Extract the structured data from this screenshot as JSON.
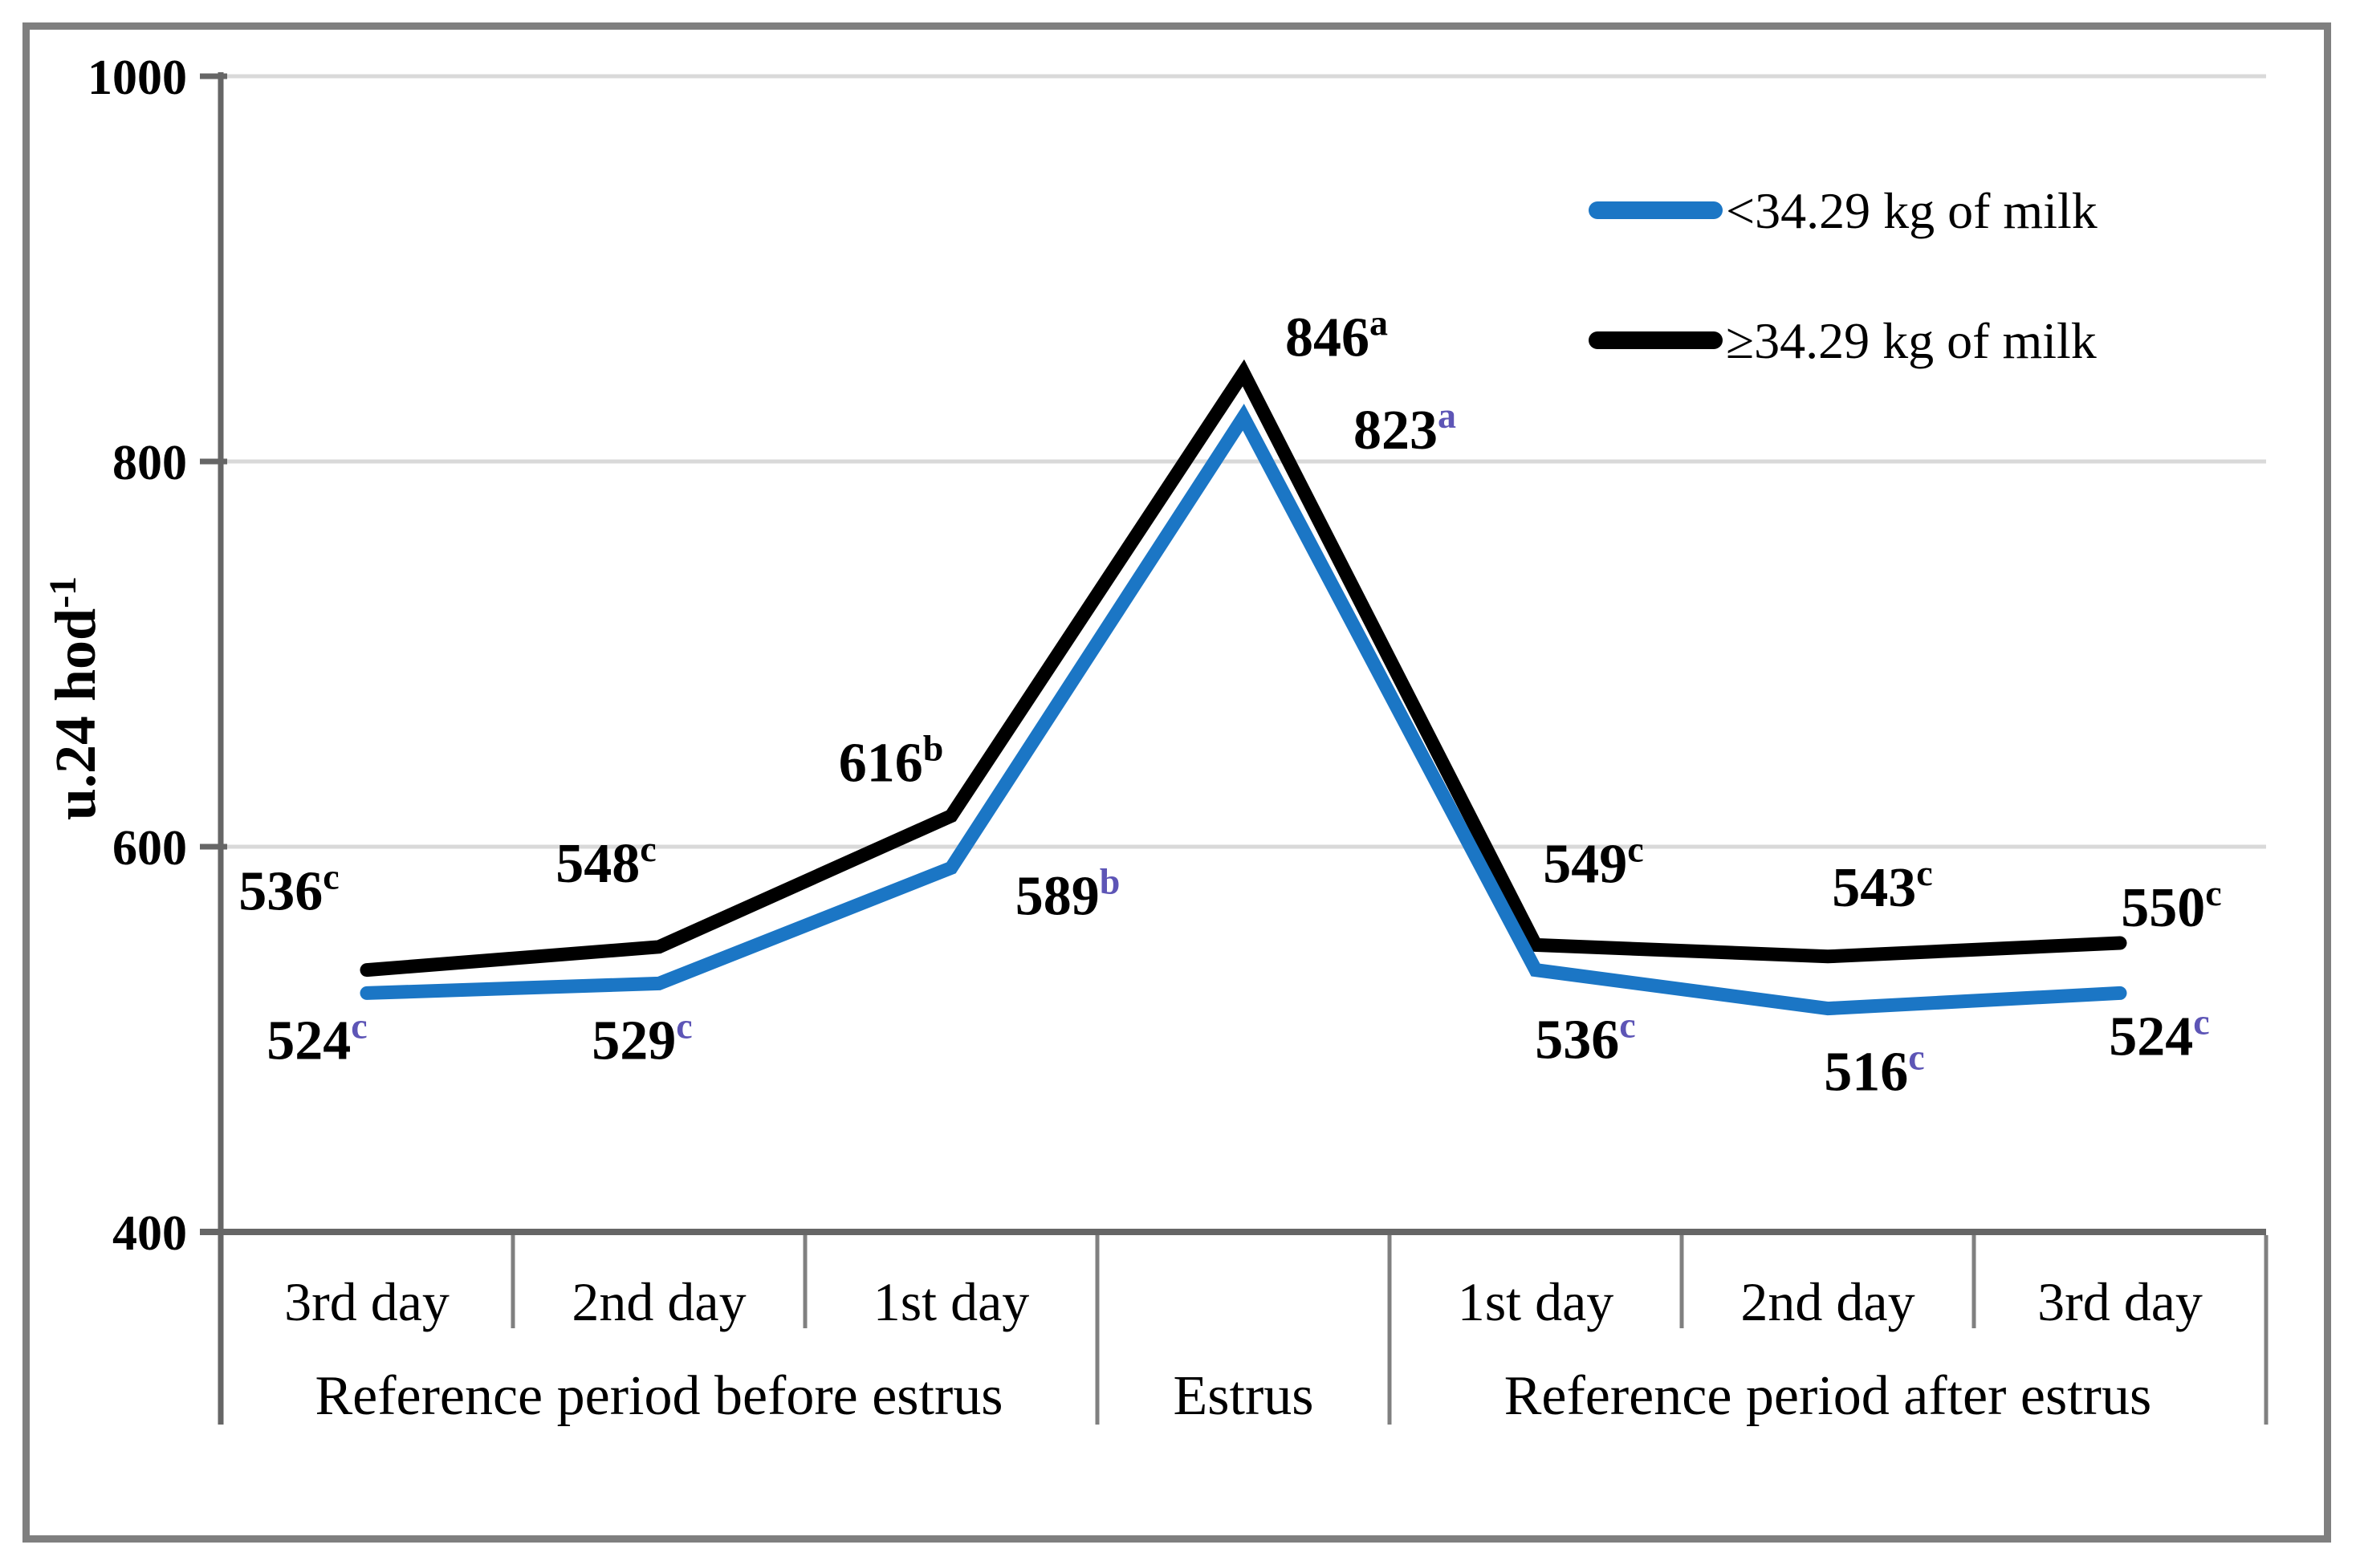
{
  "figure": {
    "background_color": "#ffffff",
    "border_color": "#7f7f7f"
  },
  "chart_data": {
    "type": "line",
    "title": "",
    "ylabel": "u.24 hod⁻¹",
    "ylabel_parts": {
      "base": "u.24 hod",
      "sup": "-1"
    },
    "xlabel": "",
    "ylim": [
      400,
      1000
    ],
    "yticks": [
      400,
      600,
      800,
      1000
    ],
    "grid": {
      "horizontal": true,
      "color": "#d9d9d9"
    },
    "axis_color": "#666666",
    "divider_color": "#808080",
    "legend_position": "top-right",
    "categories": [
      "3rd day",
      "2nd day",
      "1st day",
      "",
      "1st day",
      "2nd day",
      "3rd day"
    ],
    "category_groups": [
      {
        "label": "Reference period before estrus",
        "start": 0,
        "end": 2
      },
      {
        "label": "Estrus",
        "start": 3,
        "end": 3
      },
      {
        "label": "Reference period after estrus",
        "start": 4,
        "end": 6
      }
    ],
    "series": [
      {
        "name": "<34.29 kg of milk",
        "color": "#1b76c5",
        "label_color": "#2369a8",
        "superscript_color": "#5d55b6",
        "values": [
          524,
          529,
          589,
          823,
          536,
          516,
          524
        ],
        "value_superscripts": [
          "c",
          "c",
          "b",
          "a",
          "c",
          "c",
          "c"
        ]
      },
      {
        "name": "≥34.29 kg of milk",
        "color": "#000000",
        "label_color": "#000000",
        "superscript_color": "#000000",
        "values": [
          536,
          548,
          616,
          846,
          549,
          543,
          550
        ],
        "value_superscripts": [
          "c",
          "c",
          "b",
          "a",
          "c",
          "c",
          "c"
        ]
      }
    ]
  }
}
